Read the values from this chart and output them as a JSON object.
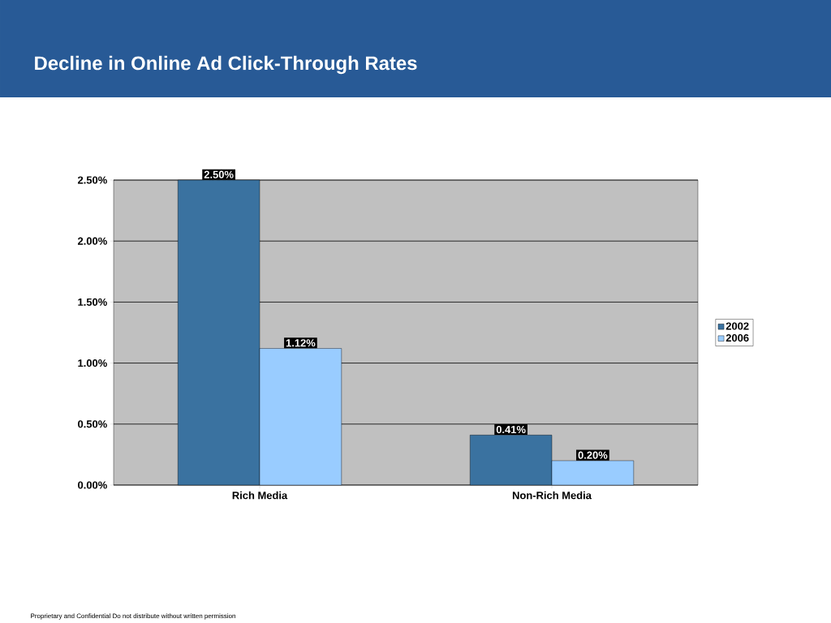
{
  "chart_data": {
    "type": "bar",
    "title": "Decline in Online Ad Click-Through Rates",
    "categories": [
      "Rich Media",
      "Non-Rich Media"
    ],
    "series": [
      {
        "name": "2002",
        "color": "#3a72a0",
        "values": [
          2.5,
          0.41
        ],
        "value_labels": [
          "2.50%",
          "0.41%"
        ]
      },
      {
        "name": "2006",
        "color": "#99ccff",
        "values": [
          1.12,
          0.2
        ],
        "value_labels": [
          "1.12%",
          "0.20%"
        ]
      }
    ],
    "ylim": [
      0,
      2.5
    ],
    "yticks": [
      {
        "value": 0,
        "label": "0.00%"
      },
      {
        "value": 0.5,
        "label": "0.50%"
      },
      {
        "value": 1,
        "label": "1.00%"
      },
      {
        "value": 1.5,
        "label": "1.50%"
      },
      {
        "value": 2,
        "label": "2.00%"
      },
      {
        "value": 2.5,
        "label": "2.50%"
      }
    ],
    "grid": "y",
    "legend": "right",
    "annotations": [
      "Proprietary and Confidential Do not distribute without written permission"
    ]
  }
}
